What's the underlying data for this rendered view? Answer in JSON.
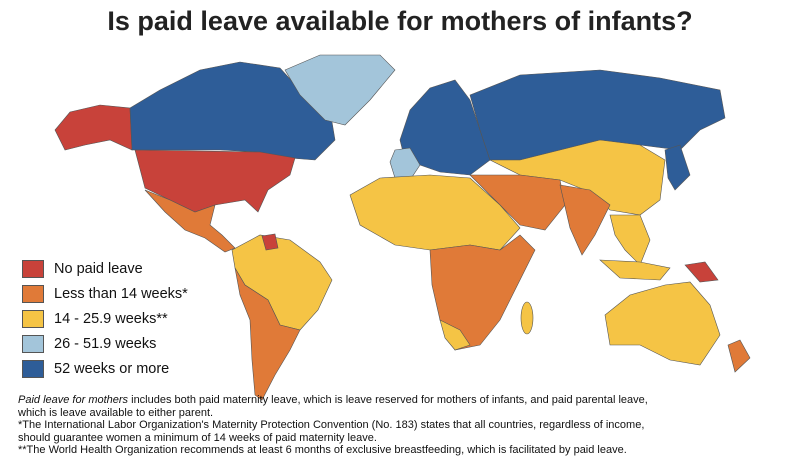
{
  "title": "Is paid leave available for mothers of infants?",
  "legend": [
    {
      "label": "No paid leave",
      "color": "#c8423a"
    },
    {
      "label": "Less than 14 weeks*",
      "color": "#e07a38"
    },
    {
      "label": "14 - 25.9 weeks**",
      "color": "#f5c445"
    },
    {
      "label": "26 - 51.9 weeks",
      "color": "#a3c5da"
    },
    {
      "label": "52 weeks or more",
      "color": "#2e5d98"
    }
  ],
  "notes": [
    {
      "emphasis": "Paid leave for mothers",
      "text": " includes both paid maternity leave, which is leave reserved for mothers of infants, and paid parental leave, which is leave available to either parent."
    },
    {
      "text": "*The International Labor Organization's Maternity Protection Convention (No. 183) states that all countries, regardless of income, should guarantee women a minimum of 14 weeks of paid maternity leave."
    },
    {
      "text": "**The World Health Organization recommends at least 6 months of exclusive breastfeeding, which is facilitated by paid leave."
    }
  ]
}
